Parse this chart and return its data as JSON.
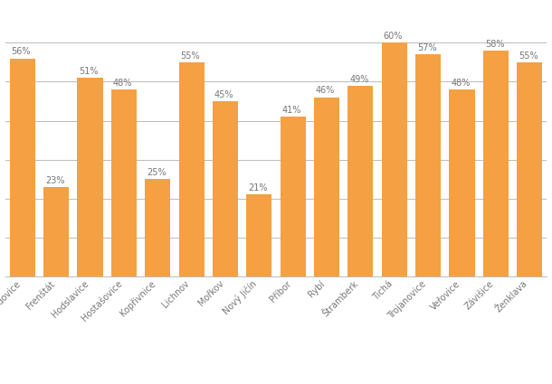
{
  "categories": [
    "Bordovice",
    "Frenštát",
    "Hodslavice",
    "Hostašovice",
    "Kopřivnice",
    "Lichnov",
    "Mořkov",
    "Nový Jičín",
    "Příbor",
    "Rybí",
    "Štramberk",
    "Tichá",
    "Trojanovice",
    "Veřovice",
    "Závišice",
    "Ženklava"
  ],
  "values": [
    56,
    23,
    51,
    48,
    25,
    55,
    45,
    21,
    41,
    46,
    49,
    60,
    57,
    48,
    58,
    55
  ],
  "bar_color": "#f5a042",
  "label_color": "#777777",
  "background_color": "#ffffff",
  "grid_color": "#bbbbbb",
  "ylim": [
    0,
    68
  ],
  "bar_width": 0.75,
  "label_fontsize": 7.0,
  "tick_fontsize": 7.0,
  "grid_yticks": [
    10,
    20,
    30,
    40,
    50,
    60,
    70
  ]
}
